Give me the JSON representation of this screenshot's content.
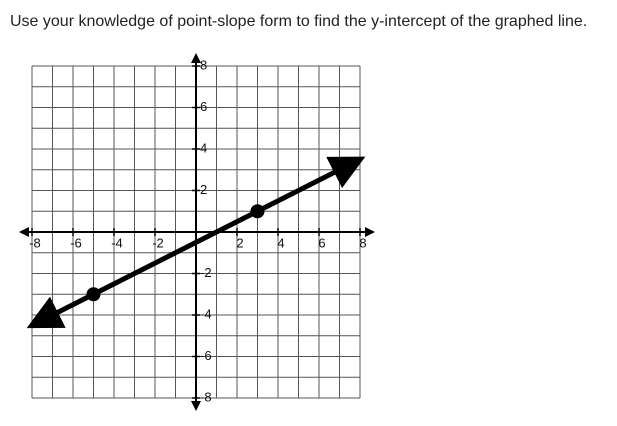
{
  "question": "Use your knowledge of point-slope form to find the y-intercept of the graphed line.",
  "chart_data": {
    "type": "line",
    "x": [
      -7.5,
      -5,
      3,
      7.5
    ],
    "series": [
      {
        "values": [
          -4.25,
          -3,
          1,
          3.25
        ],
        "color": "#000000"
      }
    ],
    "points": [
      {
        "x": -5,
        "y": -3
      },
      {
        "x": 3,
        "y": 1
      }
    ],
    "xlim": [
      -8,
      8
    ],
    "ylim": [
      -8,
      8
    ],
    "xticks": [
      -8,
      -6,
      -4,
      -2,
      2,
      4,
      6,
      8
    ],
    "yticks": [
      8,
      6,
      4,
      2,
      -2,
      -4,
      -6,
      -8
    ],
    "xgrid": [
      -8,
      -7,
      -6,
      -5,
      -4,
      -3,
      -2,
      -1,
      0,
      1,
      2,
      3,
      4,
      5,
      6,
      7,
      8
    ],
    "ygrid": [
      -8,
      -7,
      -6,
      -5,
      -4,
      -3,
      -2,
      -1,
      0,
      1,
      2,
      3,
      4,
      5,
      6,
      7,
      8
    ],
    "grid": true
  }
}
